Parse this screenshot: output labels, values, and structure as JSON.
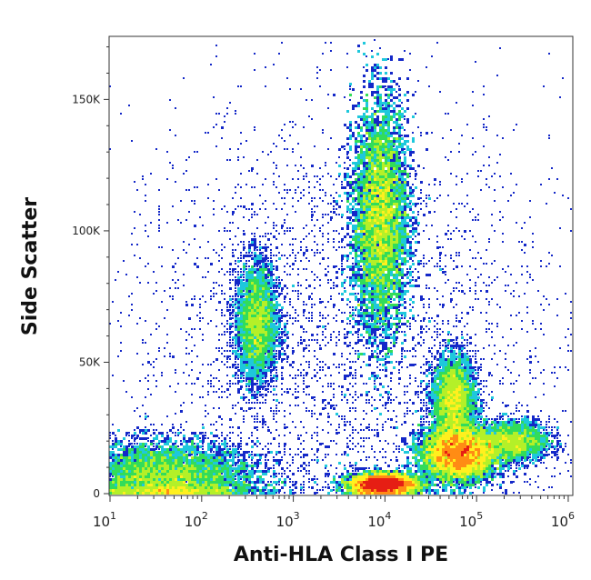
{
  "chart_data": {
    "type": "heatmap",
    "subtype": "flow cytometry density dot plot",
    "xlabel": "Anti-HLA Class I PE",
    "ylabel": "Side Scatter",
    "x_scale": "log",
    "xlim": [
      10,
      1000000
    ],
    "ylim": [
      0,
      174000
    ],
    "x_ticks": [
      {
        "base": "10",
        "exp": "1",
        "value": 10
      },
      {
        "base": "10",
        "exp": "2",
        "value": 100
      },
      {
        "base": "10",
        "exp": "3",
        "value": 1000
      },
      {
        "base": "10",
        "exp": "4",
        "value": 10000
      },
      {
        "base": "10",
        "exp": "5",
        "value": 100000
      },
      {
        "base": "10",
        "exp": "6",
        "value": 1000000
      }
    ],
    "y_ticks": [
      {
        "label": "0",
        "value": 0
      },
      {
        "label": "50K",
        "value": 50000
      },
      {
        "label": "100K",
        "value": 100000
      },
      {
        "label": "150K",
        "value": 150000
      }
    ],
    "grid": false,
    "colormap": [
      "#ffffff",
      "#1428c8",
      "#1e78e6",
      "#1ec8dc",
      "#32dc5a",
      "#b4f028",
      "#fff01e",
      "#ff8c14",
      "#e61e14"
    ],
    "populations": [
      {
        "log10_x": 1.6,
        "y": 6000,
        "sd_log10_x": 0.5,
        "sd_y": 7000,
        "relative_count": 0.16
      },
      {
        "log10_x": 2.6,
        "y": 65000,
        "sd_log10_x": 0.12,
        "sd_y": 12000,
        "relative_count": 0.07
      },
      {
        "log10_x": 3.95,
        "y": 105000,
        "sd_log10_x": 0.15,
        "sd_y": 22000,
        "relative_count": 0.2
      },
      {
        "log10_x": 3.98,
        "y": 3500,
        "sd_log10_x": 0.18,
        "sd_y": 2000,
        "relative_count": 0.18
      },
      {
        "log10_x": 4.8,
        "y": 15000,
        "sd_log10_x": 0.2,
        "sd_y": 5000,
        "relative_count": 0.2
      },
      {
        "log10_x": 4.75,
        "y": 35000,
        "sd_log10_x": 0.12,
        "sd_y": 9000,
        "relative_count": 0.08
      },
      {
        "log10_x": 5.4,
        "y": 20000,
        "sd_log10_x": 0.2,
        "sd_y": 4000,
        "relative_count": 0.05
      },
      {
        "log10_x": 3.5,
        "y": 60000,
        "sd_log10_x": 1.2,
        "sd_y": 45000,
        "relative_count": 0.06
      }
    ]
  }
}
